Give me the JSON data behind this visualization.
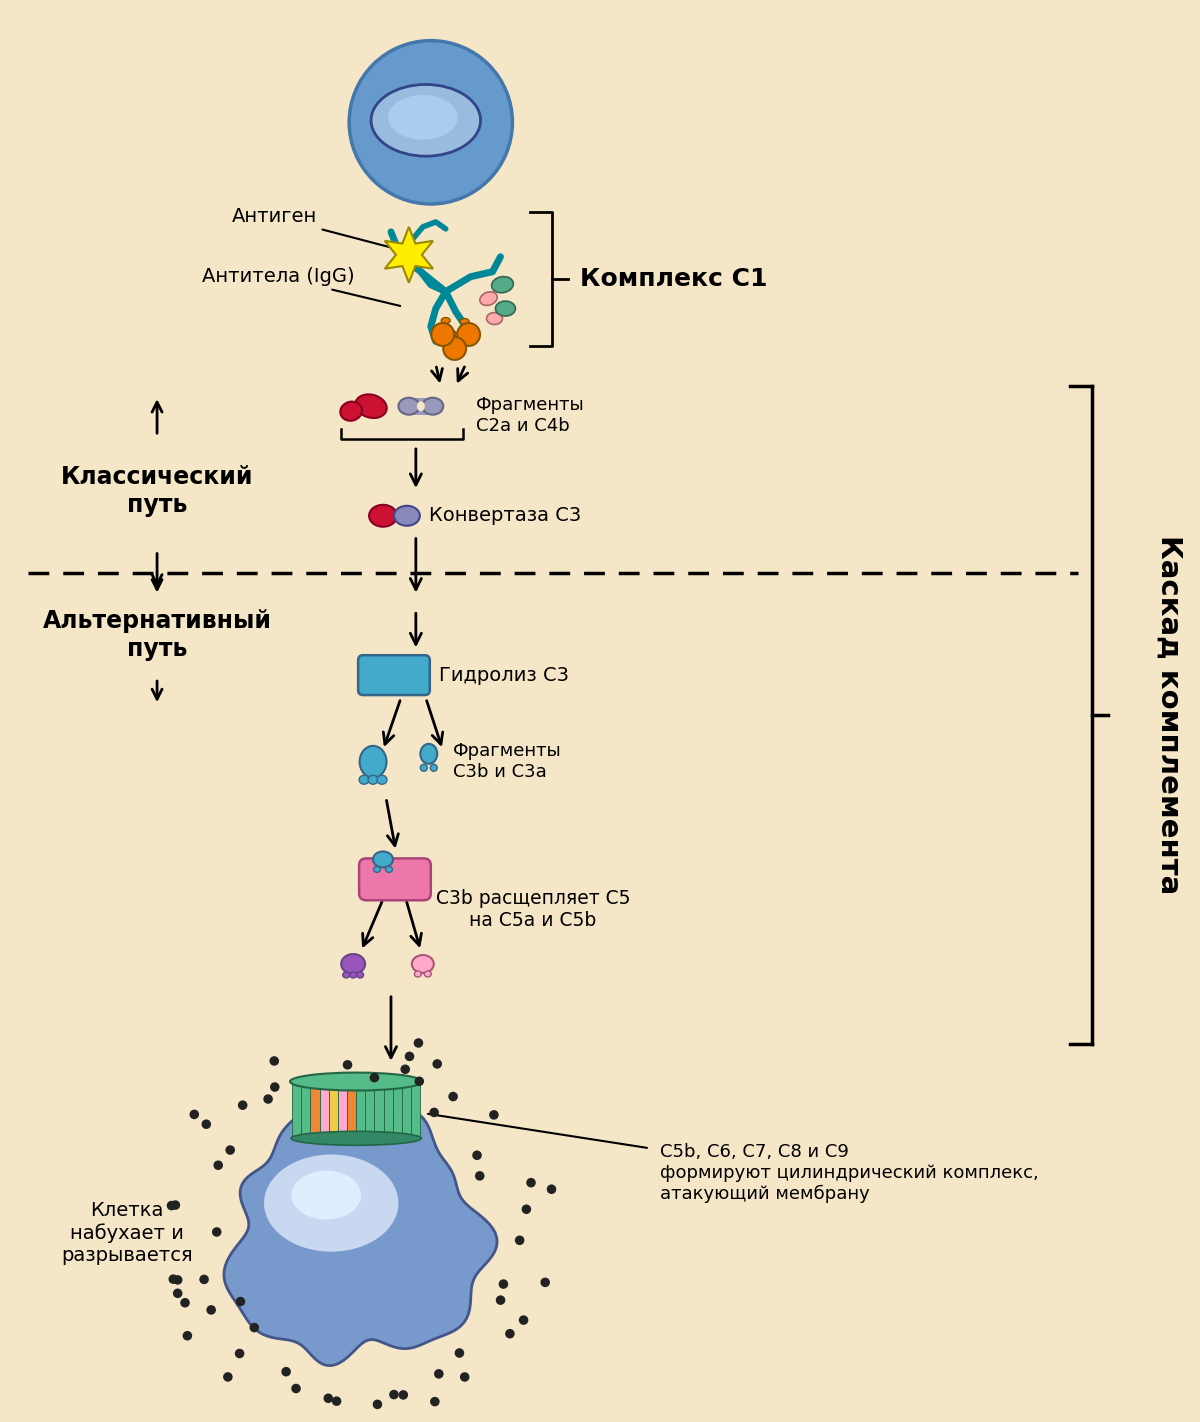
{
  "background_color": "#f5e6c8",
  "fig_width": 12.0,
  "fig_height": 14.22,
  "text_color": "#000000",
  "labels": {
    "antigen": "Антиген",
    "antibody": "Антитела (IgG)",
    "complex_c1": "Комплекс С1",
    "fragments_c2a_c4b": "Фрагменты\nС2а и С4b",
    "convertase_c3": "Конвертаза С3",
    "classical_path": "Классический\nпуть",
    "alternative_path": "Альтернативный\nпуть",
    "hydrolysis_c3": "Гидролиз С3",
    "fragments_c3b_c3a": "Фрагменты\nС3b и С3а",
    "c3b_cleaves": "С3b расщепляет С5\nна С5а и С5b",
    "cascade": "Каскад комплемента",
    "membrane_attack": "С5b, С6, С7, С8 и С9\nформируют цилиндрический комплекс,\nатакующий мембрану",
    "cell_swells": "Клетка\nнабухает и\nразрывается"
  },
  "colors": {
    "cell_blue_dark": "#4477aa",
    "cell_blue_mid": "#6699cc",
    "cell_blue_light": "#99bbdd",
    "cell_nucleus_dark": "#334488",
    "antigen_yellow": "#ffee00",
    "antigen_edge": "#998800",
    "antibody_teal": "#008899",
    "c1q_orange": "#ee7700",
    "c1r_salmon": "#ffaaaa",
    "c1s_green": "#55aa88",
    "fragment_red": "#cc1133",
    "fragment_lavender": "#9999bb",
    "convertase_red": "#cc1133",
    "convertase_blue": "#8888bb",
    "hydrolysis_blue": "#44aacc",
    "c3b_pink": "#ee77aa",
    "c3b_blue": "#44aacc",
    "c5a_purple": "#9955bb",
    "c5b_pink": "#ffaacc",
    "mac_green": "#55bb88",
    "mac_orange": "#ee8833",
    "mac_pink": "#ffaacc",
    "mac_yellow": "#eecc44",
    "target_cell_blue": "#7799cc",
    "target_cell_light": "#aabbdd",
    "dots_dark": "#333333"
  }
}
